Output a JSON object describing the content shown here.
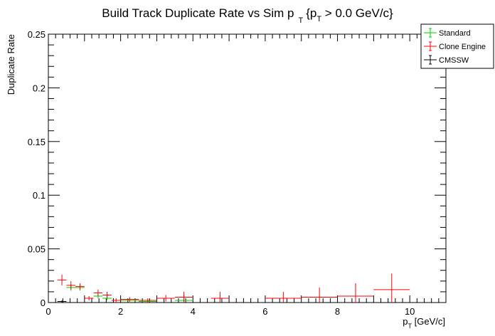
{
  "chart_data": {
    "type": "scatter",
    "title": {
      "main": "Build Track Duplicate Rate vs Sim p",
      "sub": "T",
      "rest_open": "{p",
      "rest_sub": "T",
      "rest_close": " > 0.0 GeV/c}"
    },
    "xlabel": {
      "main": "p",
      "sub": "T",
      "rest": " [GeV/c]"
    },
    "ylabel": "Duplicate Rate",
    "xlim": [
      0,
      11
    ],
    "ylim": [
      0,
      0.25
    ],
    "x_ticks": [
      {
        "value": 0,
        "label": "0"
      },
      {
        "value": 2,
        "label": "2"
      },
      {
        "value": 4,
        "label": "4"
      },
      {
        "value": 6,
        "label": "6"
      },
      {
        "value": 8,
        "label": "8"
      },
      {
        "value": 10,
        "label": "10"
      }
    ],
    "y_ticks": [
      {
        "value": 0,
        "label": "0"
      },
      {
        "value": 0.05,
        "label": "0.05"
      },
      {
        "value": 0.1,
        "label": "0.1"
      },
      {
        "value": 0.15,
        "label": "0.15"
      },
      {
        "value": 0.2,
        "label": "0.2"
      },
      {
        "value": 0.25,
        "label": "0.25"
      }
    ],
    "grid": false,
    "legend_position": "top-right",
    "series": [
      {
        "name": "Standard",
        "color": "#00cc00",
        "points": [
          {
            "xlo": 0.5,
            "xhi": 0.75,
            "y": 0.014,
            "err": 0.003
          },
          {
            "xlo": 0.75,
            "xhi": 1.0,
            "y": 0.014,
            "err": 0.003
          },
          {
            "xlo": 1.25,
            "xhi": 1.5,
            "y": 0.006,
            "err": 0.002
          },
          {
            "xlo": 1.5,
            "xhi": 1.75,
            "y": 0.004,
            "err": 0.002
          },
          {
            "xlo": 2.0,
            "xhi": 2.5,
            "y": 0.002,
            "err": 0.002
          },
          {
            "xlo": 2.5,
            "xhi": 3.0,
            "y": 0.001,
            "err": 0.001
          },
          {
            "xlo": 3.5,
            "xhi": 4.0,
            "y": 0.002,
            "err": 0.003
          }
        ]
      },
      {
        "name": "Clone Engine",
        "color": "#ff0000",
        "points": [
          {
            "xlo": 0.25,
            "xhi": 0.5,
            "y": 0.021,
            "err": 0.005
          },
          {
            "xlo": 0.5,
            "xhi": 0.75,
            "y": 0.016,
            "err": 0.004
          },
          {
            "xlo": 0.75,
            "xhi": 1.0,
            "y": 0.015,
            "err": 0.003
          },
          {
            "xlo": 1.0,
            "xhi": 1.25,
            "y": 0.004,
            "err": 0.002
          },
          {
            "xlo": 1.25,
            "xhi": 1.5,
            "y": 0.009,
            "err": 0.003
          },
          {
            "xlo": 1.5,
            "xhi": 1.75,
            "y": 0.007,
            "err": 0.003
          },
          {
            "xlo": 1.75,
            "xhi": 2.0,
            "y": 0.002,
            "err": 0.002
          },
          {
            "xlo": 2.0,
            "xhi": 2.5,
            "y": 0.003,
            "err": 0.002
          },
          {
            "xlo": 2.5,
            "xhi": 3.0,
            "y": 0.002,
            "err": 0.002
          },
          {
            "xlo": 3.0,
            "xhi": 3.5,
            "y": 0.004,
            "err": 0.003
          },
          {
            "xlo": 3.5,
            "xhi": 4.0,
            "y": 0.005,
            "err": 0.005
          },
          {
            "xlo": 4.5,
            "xhi": 5.0,
            "y": 0.004,
            "err": 0.006
          },
          {
            "xlo": 6.0,
            "xhi": 7.0,
            "y": 0.004,
            "err": 0.006
          },
          {
            "xlo": 7.0,
            "xhi": 8.0,
            "y": 0.005,
            "err": 0.009
          },
          {
            "xlo": 8.0,
            "xhi": 9.0,
            "y": 0.006,
            "err": 0.012
          },
          {
            "xlo": 9.0,
            "xhi": 10.0,
            "y": 0.012,
            "err": 0.015
          }
        ]
      },
      {
        "name": "CMSSW",
        "color": "#000000",
        "points": [
          {
            "xlo": 0.25,
            "xhi": 0.5,
            "y": 0.001,
            "err": 0.001
          }
        ]
      }
    ]
  }
}
